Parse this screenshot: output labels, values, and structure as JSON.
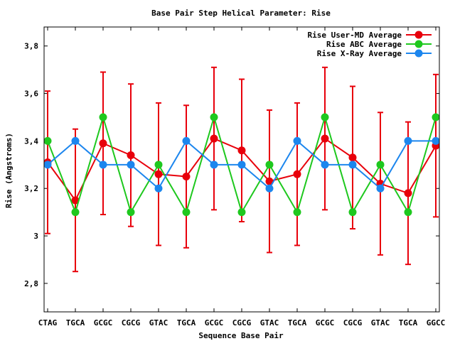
{
  "chart_data": {
    "type": "line",
    "title": "Base Pair Step Helical Parameter: Rise",
    "xlabel": "Sequence Base Pair",
    "ylabel": "Rise (Angstroms)",
    "categories": [
      "CTAG",
      "TGCA",
      "GCGC",
      "CGCG",
      "GTAC",
      "TGCA",
      "GCGC",
      "CGCG",
      "GTAC",
      "TGCA",
      "GCGC",
      "CGCG",
      "GTAC",
      "TGCA",
      "GGCC"
    ],
    "ylim": [
      2.68,
      3.88
    ],
    "yticks": [
      2.8,
      3,
      3.2,
      3.4,
      3.6,
      3.8
    ],
    "ytick_labels": [
      "2,8",
      "3",
      "3,2",
      "3,4",
      "3,6",
      "3,8"
    ],
    "legend_position": "top-right",
    "series": [
      {
        "name": "Rise User-MD Average",
        "color": "#e8000b",
        "values": [
          3.31,
          3.15,
          3.39,
          3.34,
          3.26,
          3.25,
          3.41,
          3.36,
          3.23,
          3.26,
          3.41,
          3.33,
          3.22,
          3.18,
          3.38
        ],
        "error": [
          0.3,
          0.3,
          0.3,
          0.3,
          0.3,
          0.3,
          0.3,
          0.3,
          0.3,
          0.3,
          0.3,
          0.3,
          0.3,
          0.3,
          0.3
        ]
      },
      {
        "name": "Rise ABC Average",
        "color": "#1ec81e",
        "values": [
          3.4,
          3.1,
          3.5,
          3.1,
          3.3,
          3.1,
          3.5,
          3.1,
          3.3,
          3.1,
          3.5,
          3.1,
          3.3,
          3.1,
          3.5
        ]
      },
      {
        "name": "Rise X-Ray Average",
        "color": "#1c86ee",
        "values": [
          3.3,
          3.4,
          3.3,
          3.3,
          3.2,
          3.4,
          3.3,
          3.3,
          3.2,
          3.4,
          3.3,
          3.3,
          3.2,
          3.4,
          3.4
        ]
      }
    ]
  }
}
